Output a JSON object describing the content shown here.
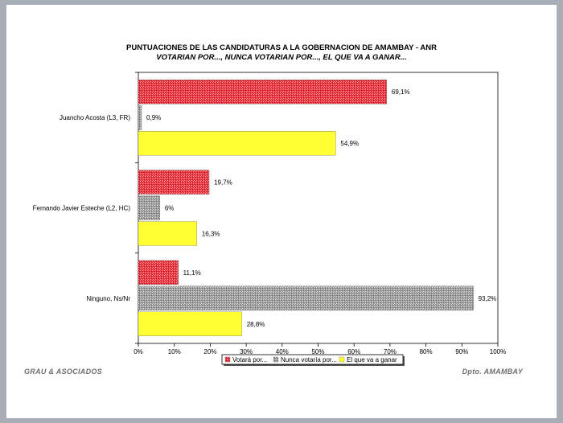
{
  "chart_data": {
    "type": "bar",
    "orientation": "horizontal",
    "title": "PUNTUACIONES DE LAS CANDIDATURAS A LA GOBERNACION DE AMAMBAY  -  ANR",
    "subtitle": "VOTARIAN POR..., NUNCA VOTARIAN POR..., EL QUE VA A GANAR...",
    "categories": [
      "Juancho Acosta (L3, FR)",
      "Fernando Javier Esteche (L2, HC)",
      "Ninguno, Ns/Nr"
    ],
    "series": [
      {
        "name": "Votará por...",
        "color": "#e8313a",
        "values": [
          69.1,
          19.7,
          11.1
        ],
        "labels": [
          "69,1%",
          "19,7%",
          "11,1%"
        ]
      },
      {
        "name": "Nunca votaría por...",
        "color": "#9a9a9a",
        "values": [
          0.9,
          6,
          93.2
        ],
        "labels": [
          "0,9%",
          "6%",
          "93,2%"
        ]
      },
      {
        "name": "El que va a ganar",
        "color": "#ffff33",
        "values": [
          54.9,
          16.3,
          28.8
        ],
        "labels": [
          "54,9%",
          "16,3%",
          "28,8%"
        ]
      }
    ],
    "xlim": [
      0,
      100
    ],
    "xticks": [
      "0%",
      "10%",
      "20%",
      "30%",
      "40%",
      "50%",
      "60%",
      "70%",
      "80%",
      "90%",
      "100%"
    ],
    "grid": false,
    "legend": "bottom-center"
  },
  "footer": {
    "left": "GRAU & ASOCIADOS",
    "right": "Dpto. AMAMBAY"
  }
}
